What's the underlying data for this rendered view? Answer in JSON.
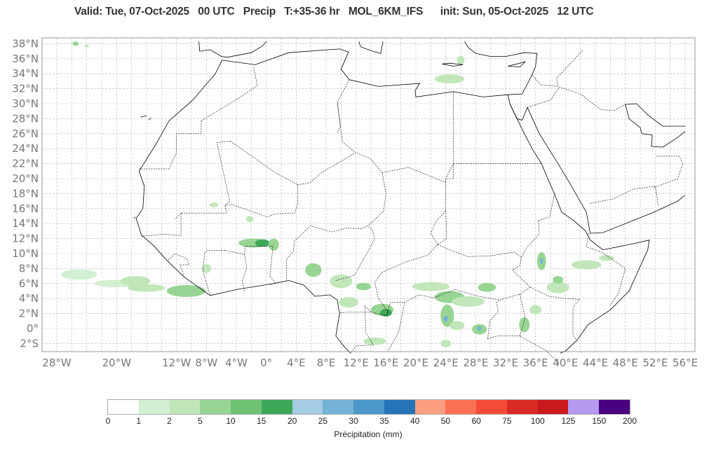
{
  "title": "Valid: Tue, 07-Oct-2025   00 UTC   Precip   T:+35-36 hr   MOL_6KM_IFS      init: Sun, 05-Oct-2025   12 UTC",
  "lat_ticks": [
    "38°N",
    "36°N",
    "34°N",
    "32°N",
    "30°N",
    "28°N",
    "26°N",
    "24°N",
    "22°N",
    "20°N",
    "18°N",
    "16°N",
    "14°N",
    "12°N",
    "10°N",
    "8°N",
    "6°N",
    "4°N",
    "2°N",
    "0°",
    "2°S"
  ],
  "lat_values": [
    38,
    36,
    34,
    32,
    30,
    28,
    26,
    24,
    22,
    20,
    18,
    16,
    14,
    12,
    10,
    8,
    6,
    4,
    2,
    0,
    -2
  ],
  "lon_ticks": [
    "28°W",
    "20°W",
    "12°W",
    "8°W",
    "4°W",
    "0°",
    "4°E",
    "8°E",
    "12°E",
    "16°E",
    "20°E",
    "24°E",
    "28°E",
    "32°E",
    "36°E",
    "40°E",
    "44°E",
    "48°E",
    "52°E",
    "56°E"
  ],
  "lon_values": [
    -28,
    -20,
    -12,
    -8,
    -4,
    0,
    4,
    8,
    12,
    16,
    20,
    24,
    28,
    32,
    36,
    40,
    44,
    48,
    52,
    56
  ],
  "colorbar": {
    "label": "Précipitation (mm)",
    "ticks": [
      "0",
      "1",
      "2",
      "5",
      "10",
      "15",
      "20",
      "25",
      "30",
      "35",
      "40",
      "50",
      "60",
      "75",
      "100",
      "125",
      "150",
      "200"
    ],
    "colors": [
      "#ffffff",
      "#d3efd1",
      "#c1e6ba",
      "#98d594",
      "#6fc274",
      "#3ca85a",
      "#a4cce3",
      "#74b2d8",
      "#4b98c9",
      "#2574b7",
      "#fc9e82",
      "#fb7252",
      "#f44b37",
      "#da2a25",
      "#c8191d",
      "#b49aee",
      "#4b007f"
    ]
  }
}
